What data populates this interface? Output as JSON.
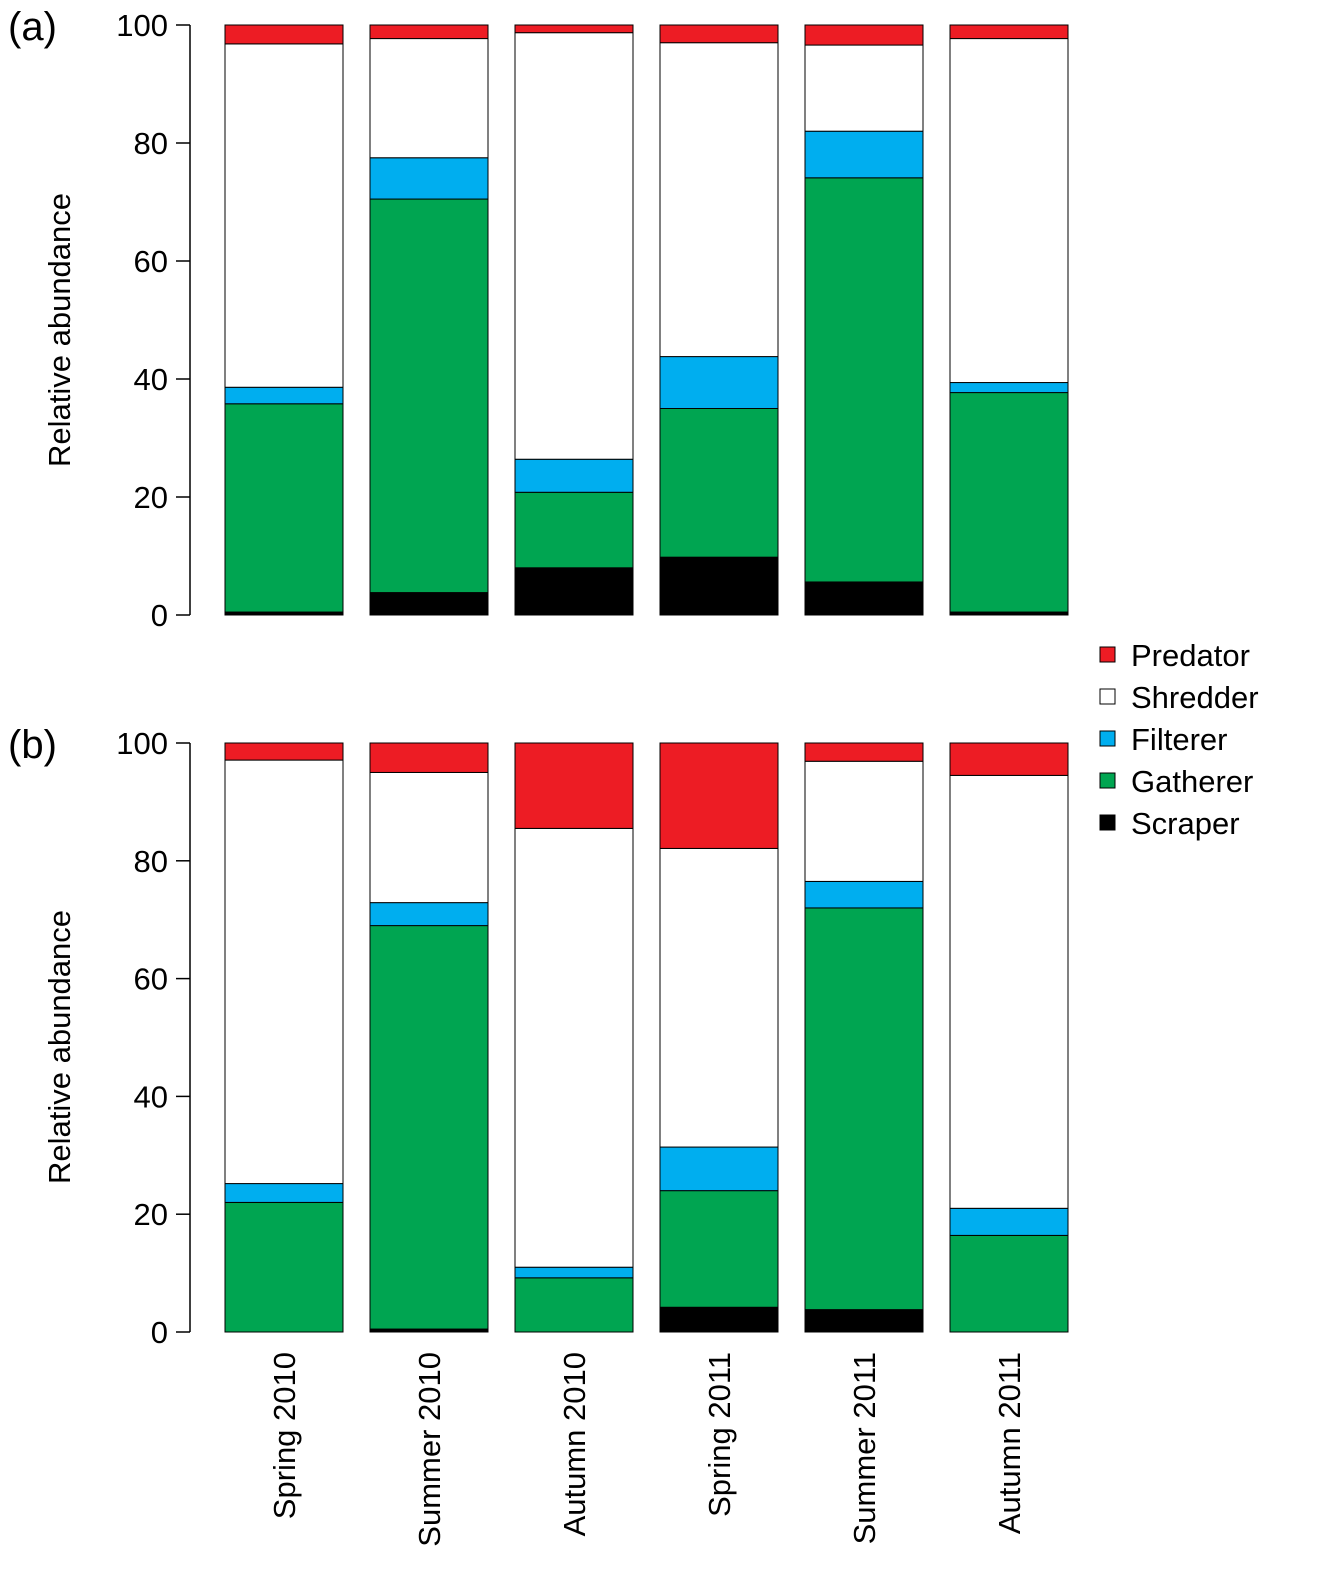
{
  "chart_data": [
    {
      "type": "bar",
      "stacked": true,
      "panel_label": "(a)",
      "ylabel": "Relative abundance",
      "ylim": [
        0,
        100
      ],
      "yticks": [
        0,
        20,
        40,
        60,
        80,
        100
      ],
      "categories": [
        "Spring 2010",
        "Summer 2010",
        "Autumn 2010",
        "Spring 2011",
        "Summer 2011",
        "Autumn 2011"
      ],
      "series": [
        {
          "name": "Scraper",
          "color": "#000000",
          "values": [
            0.5,
            3.8,
            8.0,
            9.8,
            5.6,
            0.5
          ]
        },
        {
          "name": "Gatherer",
          "color": "#00A551",
          "values": [
            35.3,
            66.7,
            12.8,
            25.2,
            68.5,
            37.2
          ]
        },
        {
          "name": "Filterer",
          "color": "#00AEEF",
          "values": [
            2.8,
            7.0,
            5.6,
            8.8,
            7.9,
            1.7
          ]
        },
        {
          "name": "Shredder",
          "color": "#FFFFFF",
          "values": [
            58.2,
            20.2,
            72.3,
            53.2,
            14.6,
            58.3
          ]
        },
        {
          "name": "Predator",
          "color": "#ED1C24",
          "values": [
            3.2,
            2.3,
            1.3,
            3.0,
            3.4,
            2.3
          ]
        }
      ]
    },
    {
      "type": "bar",
      "stacked": true,
      "panel_label": "(b)",
      "ylabel": "Relative abundance",
      "ylim": [
        0,
        100
      ],
      "yticks": [
        0,
        20,
        40,
        60,
        80,
        100
      ],
      "categories": [
        "Spring 2010",
        "Summer 2010",
        "Autumn 2010",
        "Spring 2011",
        "Summer 2011",
        "Autumn 2011"
      ],
      "series": [
        {
          "name": "Scraper",
          "color": "#000000",
          "values": [
            0.0,
            0.5,
            0.0,
            4.2,
            3.8,
            0.0
          ]
        },
        {
          "name": "Gatherer",
          "color": "#00A551",
          "values": [
            22.0,
            68.5,
            9.2,
            19.8,
            68.2,
            16.4
          ]
        },
        {
          "name": "Filterer",
          "color": "#00AEEF",
          "values": [
            3.2,
            3.9,
            1.8,
            7.4,
            4.5,
            4.6
          ]
        },
        {
          "name": "Shredder",
          "color": "#FFFFFF",
          "values": [
            71.9,
            22.1,
            74.5,
            50.7,
            20.4,
            73.5
          ]
        },
        {
          "name": "Predator",
          "color": "#ED1C24",
          "values": [
            2.9,
            5.0,
            14.5,
            17.9,
            3.1,
            5.5
          ]
        }
      ]
    }
  ],
  "legend": {
    "placement": "right",
    "items": [
      {
        "name": "Predator",
        "color": "#ED1C24"
      },
      {
        "name": "Shredder",
        "color": "#FFFFFF"
      },
      {
        "name": "Filterer",
        "color": "#00AEEF"
      },
      {
        "name": "Gatherer",
        "color": "#00A551"
      },
      {
        "name": "Scraper",
        "color": "#000000"
      }
    ]
  }
}
